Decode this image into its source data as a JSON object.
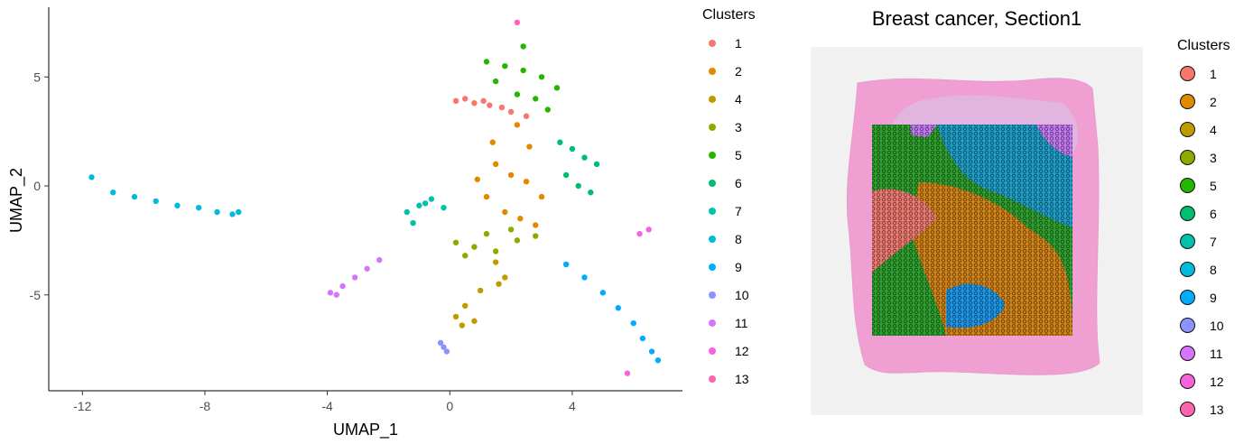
{
  "umap": {
    "xlabel": "UMAP_1",
    "ylabel": "UMAP_2",
    "x_ticks": [
      "-12",
      "-8",
      "-4",
      "0",
      "4"
    ],
    "y_ticks": [
      "5",
      "0",
      "-5"
    ]
  },
  "legend_left": {
    "title": "Clusters"
  },
  "spatial": {
    "title": "Breast cancer, Section1"
  },
  "legend_right": {
    "title": "Clusters"
  },
  "clusters": [
    {
      "label": "1",
      "color": "#F8766D"
    },
    {
      "label": "2",
      "color": "#E18A00"
    },
    {
      "label": "4",
      "color": "#BE9C00"
    },
    {
      "label": "3",
      "color": "#8CAB00"
    },
    {
      "label": "5",
      "color": "#24B700"
    },
    {
      "label": "6",
      "color": "#00BE70"
    },
    {
      "label": "7",
      "color": "#00C1AB"
    },
    {
      "label": "8",
      "color": "#00BBDA"
    },
    {
      "label": "9",
      "color": "#00ACFC"
    },
    {
      "label": "10",
      "color": "#8B93FF"
    },
    {
      "label": "11",
      "color": "#D575FE"
    },
    {
      "label": "12",
      "color": "#F962DD"
    },
    {
      "label": "13",
      "color": "#FF65AC"
    }
  ],
  "chart_data": [
    {
      "type": "scatter",
      "title": "",
      "xlabel": "UMAP_1",
      "ylabel": "UMAP_2",
      "xlim": [
        -13.1,
        7.6
      ],
      "ylim": [
        -9.4,
        8.2
      ],
      "legend": {
        "title": "Clusters",
        "position": "right"
      },
      "grid": false,
      "series": [
        {
          "name": "1",
          "color": "#F8766D",
          "x": [
            0.2,
            0.8,
            1.3,
            1.7,
            2.0,
            2.5,
            0.5,
            1.1
          ],
          "y": [
            3.9,
            3.8,
            3.7,
            3.6,
            3.4,
            3.2,
            4.0,
            3.9
          ]
        },
        {
          "name": "2",
          "color": "#E18A00",
          "x": [
            1.5,
            2.0,
            2.5,
            3.0,
            1.2,
            1.8,
            2.3,
            2.8,
            1.4,
            2.2,
            0.9,
            2.6
          ],
          "y": [
            1.0,
            0.5,
            0.2,
            -0.5,
            -0.5,
            -1.2,
            -1.5,
            -1.8,
            2.0,
            2.8,
            0.3,
            1.8
          ]
        },
        {
          "name": "4",
          "color": "#BE9C00",
          "x": [
            1.5,
            1.6,
            1.0,
            0.5,
            0.2,
            0.8,
            1.8,
            0.4
          ],
          "y": [
            -3.5,
            -4.5,
            -4.8,
            -5.5,
            -6.0,
            -6.2,
            -4.2,
            -6.4
          ]
        },
        {
          "name": "3",
          "color": "#8CAB00",
          "x": [
            0.2,
            0.8,
            1.5,
            2.2,
            2.8,
            1.2,
            2.0,
            0.5
          ],
          "y": [
            -2.6,
            -2.8,
            -3.0,
            -2.5,
            -2.3,
            -2.2,
            -2.0,
            -3.2
          ]
        },
        {
          "name": "5",
          "color": "#24B700",
          "x": [
            1.2,
            1.8,
            2.4,
            3.0,
            3.5,
            1.5,
            2.2,
            2.8,
            3.2,
            2.4
          ],
          "y": [
            5.7,
            5.5,
            5.3,
            5.0,
            4.5,
            4.8,
            4.2,
            4.0,
            3.5,
            6.4
          ]
        },
        {
          "name": "6",
          "color": "#00BE70",
          "x": [
            3.6,
            4.0,
            4.4,
            4.8,
            3.8,
            4.2,
            4.6
          ],
          "y": [
            2.0,
            1.7,
            1.3,
            1.0,
            0.5,
            0.0,
            -0.3
          ]
        },
        {
          "name": "7",
          "color": "#00C1AB",
          "x": [
            -1.4,
            -1.0,
            -0.6,
            -0.2,
            -1.2,
            -0.8
          ],
          "y": [
            -1.2,
            -0.9,
            -0.6,
            -1.0,
            -1.7,
            -0.8
          ]
        },
        {
          "name": "8",
          "color": "#00BBDA",
          "x": [
            -11.7,
            -11.0,
            -10.3,
            -9.6,
            -8.9,
            -8.2,
            -7.6,
            -7.1,
            -6.9
          ],
          "y": [
            0.4,
            -0.3,
            -0.5,
            -0.7,
            -0.9,
            -1.0,
            -1.2,
            -1.3,
            -1.2
          ]
        },
        {
          "name": "9",
          "color": "#00ACFC",
          "x": [
            3.8,
            4.4,
            5.0,
            5.5,
            6.0,
            6.3,
            6.6,
            6.8
          ],
          "y": [
            -3.6,
            -4.2,
            -4.9,
            -5.6,
            -6.3,
            -7.0,
            -7.6,
            -8.0
          ]
        },
        {
          "name": "10",
          "color": "#8B93FF",
          "x": [
            -0.3,
            -0.2,
            -0.1
          ],
          "y": [
            -7.2,
            -7.4,
            -7.6
          ]
        },
        {
          "name": "11",
          "color": "#D575FE",
          "x": [
            -3.9,
            -3.5,
            -3.1,
            -2.7,
            -2.3,
            -3.7
          ],
          "y": [
            -4.9,
            -4.6,
            -4.2,
            -3.8,
            -3.4,
            -5.0
          ]
        },
        {
          "name": "12",
          "color": "#F962DD",
          "x": [
            6.2,
            6.5,
            5.8
          ],
          "y": [
            -2.2,
            -2.0,
            -8.6
          ]
        },
        {
          "name": "13",
          "color": "#FF65AC",
          "x": [
            2.2
          ],
          "y": [
            7.5
          ]
        }
      ]
    },
    {
      "type": "heatmap",
      "title": "Breast cancer, Section1",
      "legend": {
        "title": "Clusters",
        "position": "right"
      },
      "regions": [
        {
          "cluster": "5",
          "area": "left and lower-left spots"
        },
        {
          "cluster": "8",
          "area": "upper-right spots"
        },
        {
          "cluster": "2",
          "area": "center and lower-right spots"
        },
        {
          "cluster": "1",
          "area": "left-center band"
        },
        {
          "cluster": "9",
          "area": "lower-middle spots"
        },
        {
          "cluster": "11",
          "area": "upper-right corner patch"
        }
      ]
    }
  ]
}
